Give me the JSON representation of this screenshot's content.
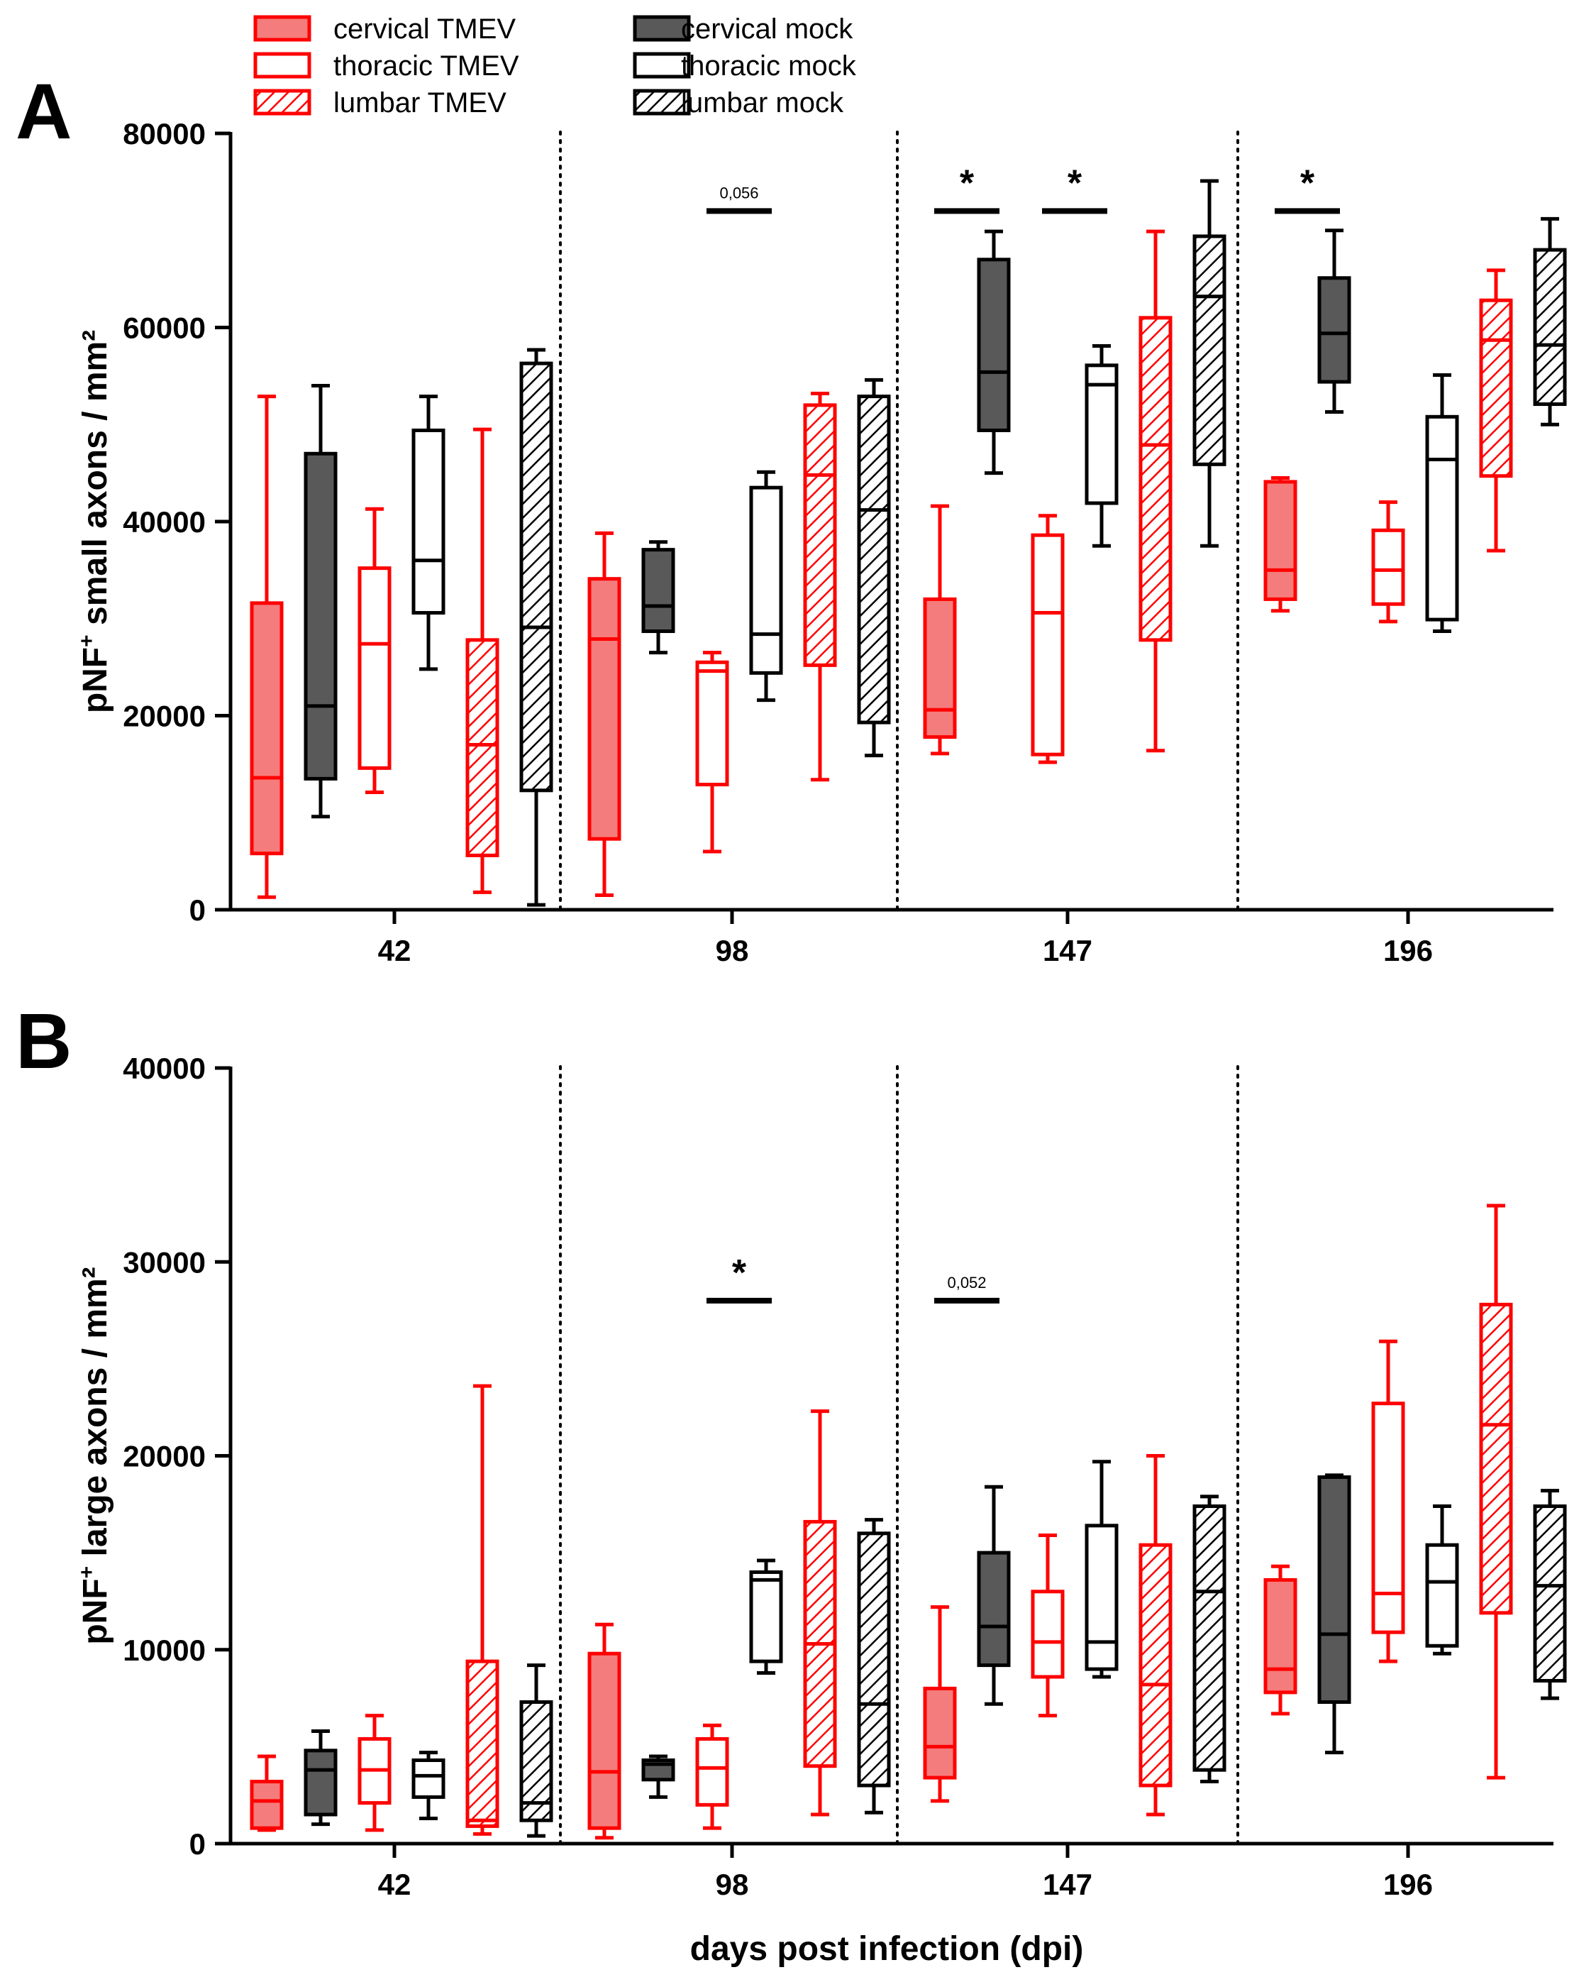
{
  "figure": {
    "legend": [
      {
        "key": "cervical_tmev",
        "label": "cervical TMEV",
        "fill": "solid"
      },
      {
        "key": "thoracic_tmev",
        "label": "thoracic TMEV",
        "fill": "open"
      },
      {
        "key": "lumbar_tmev",
        "label": "lumbar TMEV",
        "fill": "hatched"
      },
      {
        "key": "cervical_mock",
        "label": "cervical mock",
        "fill": "solid"
      },
      {
        "key": "thoracic_mock",
        "label": "thoracic mock",
        "fill": "open"
      },
      {
        "key": "lumbar_mock",
        "label": "lumbar mock",
        "fill": "hatched"
      }
    ],
    "xlabel": "days post infection (dpi)"
  },
  "colors": {
    "tmev_stroke": "#ff0000",
    "tmev_fill": "#f47c7c",
    "mock_stroke": "#000000",
    "mock_fill": "#595959",
    "open_fill": "#ffffff",
    "axis": "#000000"
  },
  "chart_data": [
    {
      "panel": "A",
      "type": "box",
      "ylabel_main": "pNF",
      "ylabel_sup": "+",
      "ylabel_rest": " small axons / mm²",
      "ylim": [
        0,
        80000
      ],
      "yticks": [
        0,
        20000,
        40000,
        60000,
        80000
      ],
      "categories": [
        "42",
        "98",
        "147",
        "196"
      ],
      "groups": [
        {
          "category": "42",
          "boxes": [
            {
              "series": "cervical_tmev",
              "min": 1300,
              "q1": 5800,
              "median": 13600,
              "q3": 31600,
              "max": 52900
            },
            {
              "series": "cervical_mock",
              "min": 9600,
              "q1": 13500,
              "median": 21000,
              "q3": 47000,
              "max": 54000
            },
            {
              "series": "thoracic_tmev",
              "min": 12100,
              "q1": 14600,
              "median": 27400,
              "q3": 35200,
              "max": 41300
            },
            {
              "series": "thoracic_mock",
              "min": 24800,
              "q1": 30600,
              "median": 36000,
              "q3": 49400,
              "max": 52900
            },
            {
              "series": "lumbar_tmev",
              "min": 1800,
              "q1": 5600,
              "median": 17000,
              "q3": 27800,
              "max": 49500
            },
            {
              "series": "lumbar_mock",
              "min": 500,
              "q1": 12300,
              "median": 29100,
              "q3": 56300,
              "max": 57700
            }
          ]
        },
        {
          "category": "98",
          "boxes": [
            {
              "series": "cervical_tmev",
              "min": 1500,
              "q1": 7300,
              "median": 27900,
              "q3": 34100,
              "max": 38800
            },
            {
              "series": "cervical_mock",
              "min": 26500,
              "q1": 28700,
              "median": 31300,
              "q3": 37100,
              "max": 37900
            },
            {
              "series": "thoracic_tmev",
              "min": 6000,
              "q1": 12900,
              "median": 24600,
              "q3": 25500,
              "max": 26500
            },
            {
              "series": "thoracic_mock",
              "min": 21600,
              "q1": 24400,
              "median": 28400,
              "q3": 43500,
              "max": 45100
            },
            {
              "series": "lumbar_tmev",
              "min": 13400,
              "q1": 25200,
              "median": 44800,
              "q3": 52000,
              "max": 53200
            },
            {
              "series": "lumbar_mock",
              "min": 15900,
              "q1": 19300,
              "median": 41200,
              "q3": 52900,
              "max": 54600
            }
          ]
        },
        {
          "category": "147",
          "boxes": [
            {
              "series": "cervical_tmev",
              "min": 16100,
              "q1": 17800,
              "median": 20600,
              "q3": 32000,
              "max": 41600
            },
            {
              "series": "cervical_mock",
              "min": 45000,
              "q1": 49400,
              "median": 55400,
              "q3": 67000,
              "max": 69900
            },
            {
              "series": "thoracic_tmev",
              "min": 15200,
              "q1": 16000,
              "median": 30600,
              "q3": 38600,
              "max": 40600
            },
            {
              "series": "thoracic_mock",
              "min": 37500,
              "q1": 41900,
              "median": 54100,
              "q3": 56100,
              "max": 58100
            },
            {
              "series": "lumbar_tmev",
              "min": 16400,
              "q1": 27800,
              "median": 47900,
              "q3": 61000,
              "max": 69900
            },
            {
              "series": "lumbar_mock",
              "min": 37500,
              "q1": 45900,
              "median": 63200,
              "q3": 69400,
              "max": 75100
            }
          ]
        },
        {
          "category": "196",
          "boxes": [
            {
              "series": "cervical_tmev",
              "min": 30800,
              "q1": 32000,
              "median": 35000,
              "q3": 44100,
              "max": 44500
            },
            {
              "series": "cervical_mock",
              "min": 51300,
              "q1": 54400,
              "median": 59400,
              "q3": 65100,
              "max": 70000
            },
            {
              "series": "thoracic_tmev",
              "min": 29700,
              "q1": 31500,
              "median": 35000,
              "q3": 39100,
              "max": 42000
            },
            {
              "series": "thoracic_mock",
              "min": 28700,
              "q1": 29900,
              "median": 46400,
              "q3": 50800,
              "max": 55100
            },
            {
              "series": "lumbar_tmev",
              "min": 37000,
              "q1": 44700,
              "median": 58700,
              "q3": 62800,
              "max": 65900
            },
            {
              "series": "lumbar_mock",
              "min": 50000,
              "q1": 52100,
              "median": 58200,
              "q3": 68000,
              "max": 71200
            }
          ]
        }
      ],
      "annotations": [
        {
          "category": "98",
          "from": "thoracic_tmev",
          "to": "thoracic_mock",
          "y": 72000,
          "text": "0,056",
          "kind": "p"
        },
        {
          "category": "147",
          "from": "cervical_tmev",
          "to": "cervical_mock",
          "y": 72000,
          "text": "*",
          "kind": "star"
        },
        {
          "category": "147",
          "from": "thoracic_tmev",
          "to": "thoracic_mock",
          "y": 72000,
          "text": "*",
          "kind": "star"
        },
        {
          "category": "196",
          "from": "cervical_tmev",
          "to": "cervical_mock",
          "y": 72000,
          "text": "*",
          "kind": "star"
        }
      ]
    },
    {
      "panel": "B",
      "type": "box",
      "ylabel_main": "pNF",
      "ylabel_sup": "+",
      "ylabel_rest": " large axons / mm²",
      "ylim": [
        0,
        40000
      ],
      "yticks": [
        0,
        10000,
        20000,
        30000,
        40000
      ],
      "categories": [
        "42",
        "98",
        "147",
        "196"
      ],
      "groups": [
        {
          "category": "42",
          "boxes": [
            {
              "series": "cervical_tmev",
              "min": 700,
              "q1": 800,
              "median": 2200,
              "q3": 3200,
              "max": 4500
            },
            {
              "series": "cervical_mock",
              "min": 1000,
              "q1": 1500,
              "median": 3800,
              "q3": 4800,
              "max": 5800
            },
            {
              "series": "thoracic_tmev",
              "min": 700,
              "q1": 2100,
              "median": 3800,
              "q3": 5400,
              "max": 6600
            },
            {
              "series": "thoracic_mock",
              "min": 1300,
              "q1": 2400,
              "median": 3500,
              "q3": 4300,
              "max": 4700
            },
            {
              "series": "lumbar_tmev",
              "min": 500,
              "q1": 900,
              "median": 1200,
              "q3": 9400,
              "max": 23600
            },
            {
              "series": "lumbar_mock",
              "min": 400,
              "q1": 1200,
              "median": 2100,
              "q3": 7300,
              "max": 9200
            }
          ]
        },
        {
          "category": "98",
          "boxes": [
            {
              "series": "cervical_tmev",
              "min": 300,
              "q1": 800,
              "median": 3700,
              "q3": 9800,
              "max": 11300
            },
            {
              "series": "cervical_mock",
              "min": 2400,
              "q1": 3300,
              "median": 4100,
              "q3": 4300,
              "max": 4500
            },
            {
              "series": "thoracic_tmev",
              "min": 800,
              "q1": 2000,
              "median": 3900,
              "q3": 5400,
              "max": 6100
            },
            {
              "series": "thoracic_mock",
              "min": 8800,
              "q1": 9400,
              "median": 13600,
              "q3": 14000,
              "max": 14600
            },
            {
              "series": "lumbar_tmev",
              "min": 1500,
              "q1": 4000,
              "median": 10300,
              "q3": 16600,
              "max": 22300
            },
            {
              "series": "lumbar_mock",
              "min": 1600,
              "q1": 3000,
              "median": 7200,
              "q3": 16000,
              "max": 16700
            }
          ]
        },
        {
          "category": "147",
          "boxes": [
            {
              "series": "cervical_tmev",
              "min": 2200,
              "q1": 3400,
              "median": 5000,
              "q3": 8000,
              "max": 12200
            },
            {
              "series": "cervical_mock",
              "min": 7200,
              "q1": 9200,
              "median": 11200,
              "q3": 15000,
              "max": 18400
            },
            {
              "series": "thoracic_tmev",
              "min": 6600,
              "q1": 8600,
              "median": 10400,
              "q3": 13000,
              "max": 15900
            },
            {
              "series": "thoracic_mock",
              "min": 8600,
              "q1": 9000,
              "median": 10400,
              "q3": 16400,
              "max": 19700
            },
            {
              "series": "lumbar_tmev",
              "min": 1500,
              "q1": 3000,
              "median": 8200,
              "q3": 15400,
              "max": 20000
            },
            {
              "series": "lumbar_mock",
              "min": 3200,
              "q1": 3800,
              "median": 13000,
              "q3": 17400,
              "max": 17900
            }
          ]
        },
        {
          "category": "196",
          "boxes": [
            {
              "series": "cervical_tmev",
              "min": 6700,
              "q1": 7800,
              "median": 9000,
              "q3": 13600,
              "max": 14300
            },
            {
              "series": "cervical_mock",
              "min": 4700,
              "q1": 7300,
              "median": 10800,
              "q3": 18900,
              "max": 19000
            },
            {
              "series": "thoracic_tmev",
              "min": 9400,
              "q1": 10900,
              "median": 12900,
              "q3": 22700,
              "max": 25900
            },
            {
              "series": "thoracic_mock",
              "min": 9800,
              "q1": 10200,
              "median": 13500,
              "q3": 15400,
              "max": 17400
            },
            {
              "series": "lumbar_tmev",
              "min": 3400,
              "q1": 11900,
              "median": 21600,
              "q3": 27800,
              "max": 32900
            },
            {
              "series": "lumbar_mock",
              "min": 7500,
              "q1": 8400,
              "median": 13300,
              "q3": 17400,
              "max": 18200
            }
          ]
        }
      ],
      "annotations": [
        {
          "category": "98",
          "from": "thoracic_tmev",
          "to": "thoracic_mock",
          "y": 28000,
          "text": "*",
          "kind": "star"
        },
        {
          "category": "147",
          "from": "cervical_tmev",
          "to": "cervical_mock",
          "y": 28000,
          "text": "0,052",
          "kind": "p"
        }
      ]
    }
  ]
}
